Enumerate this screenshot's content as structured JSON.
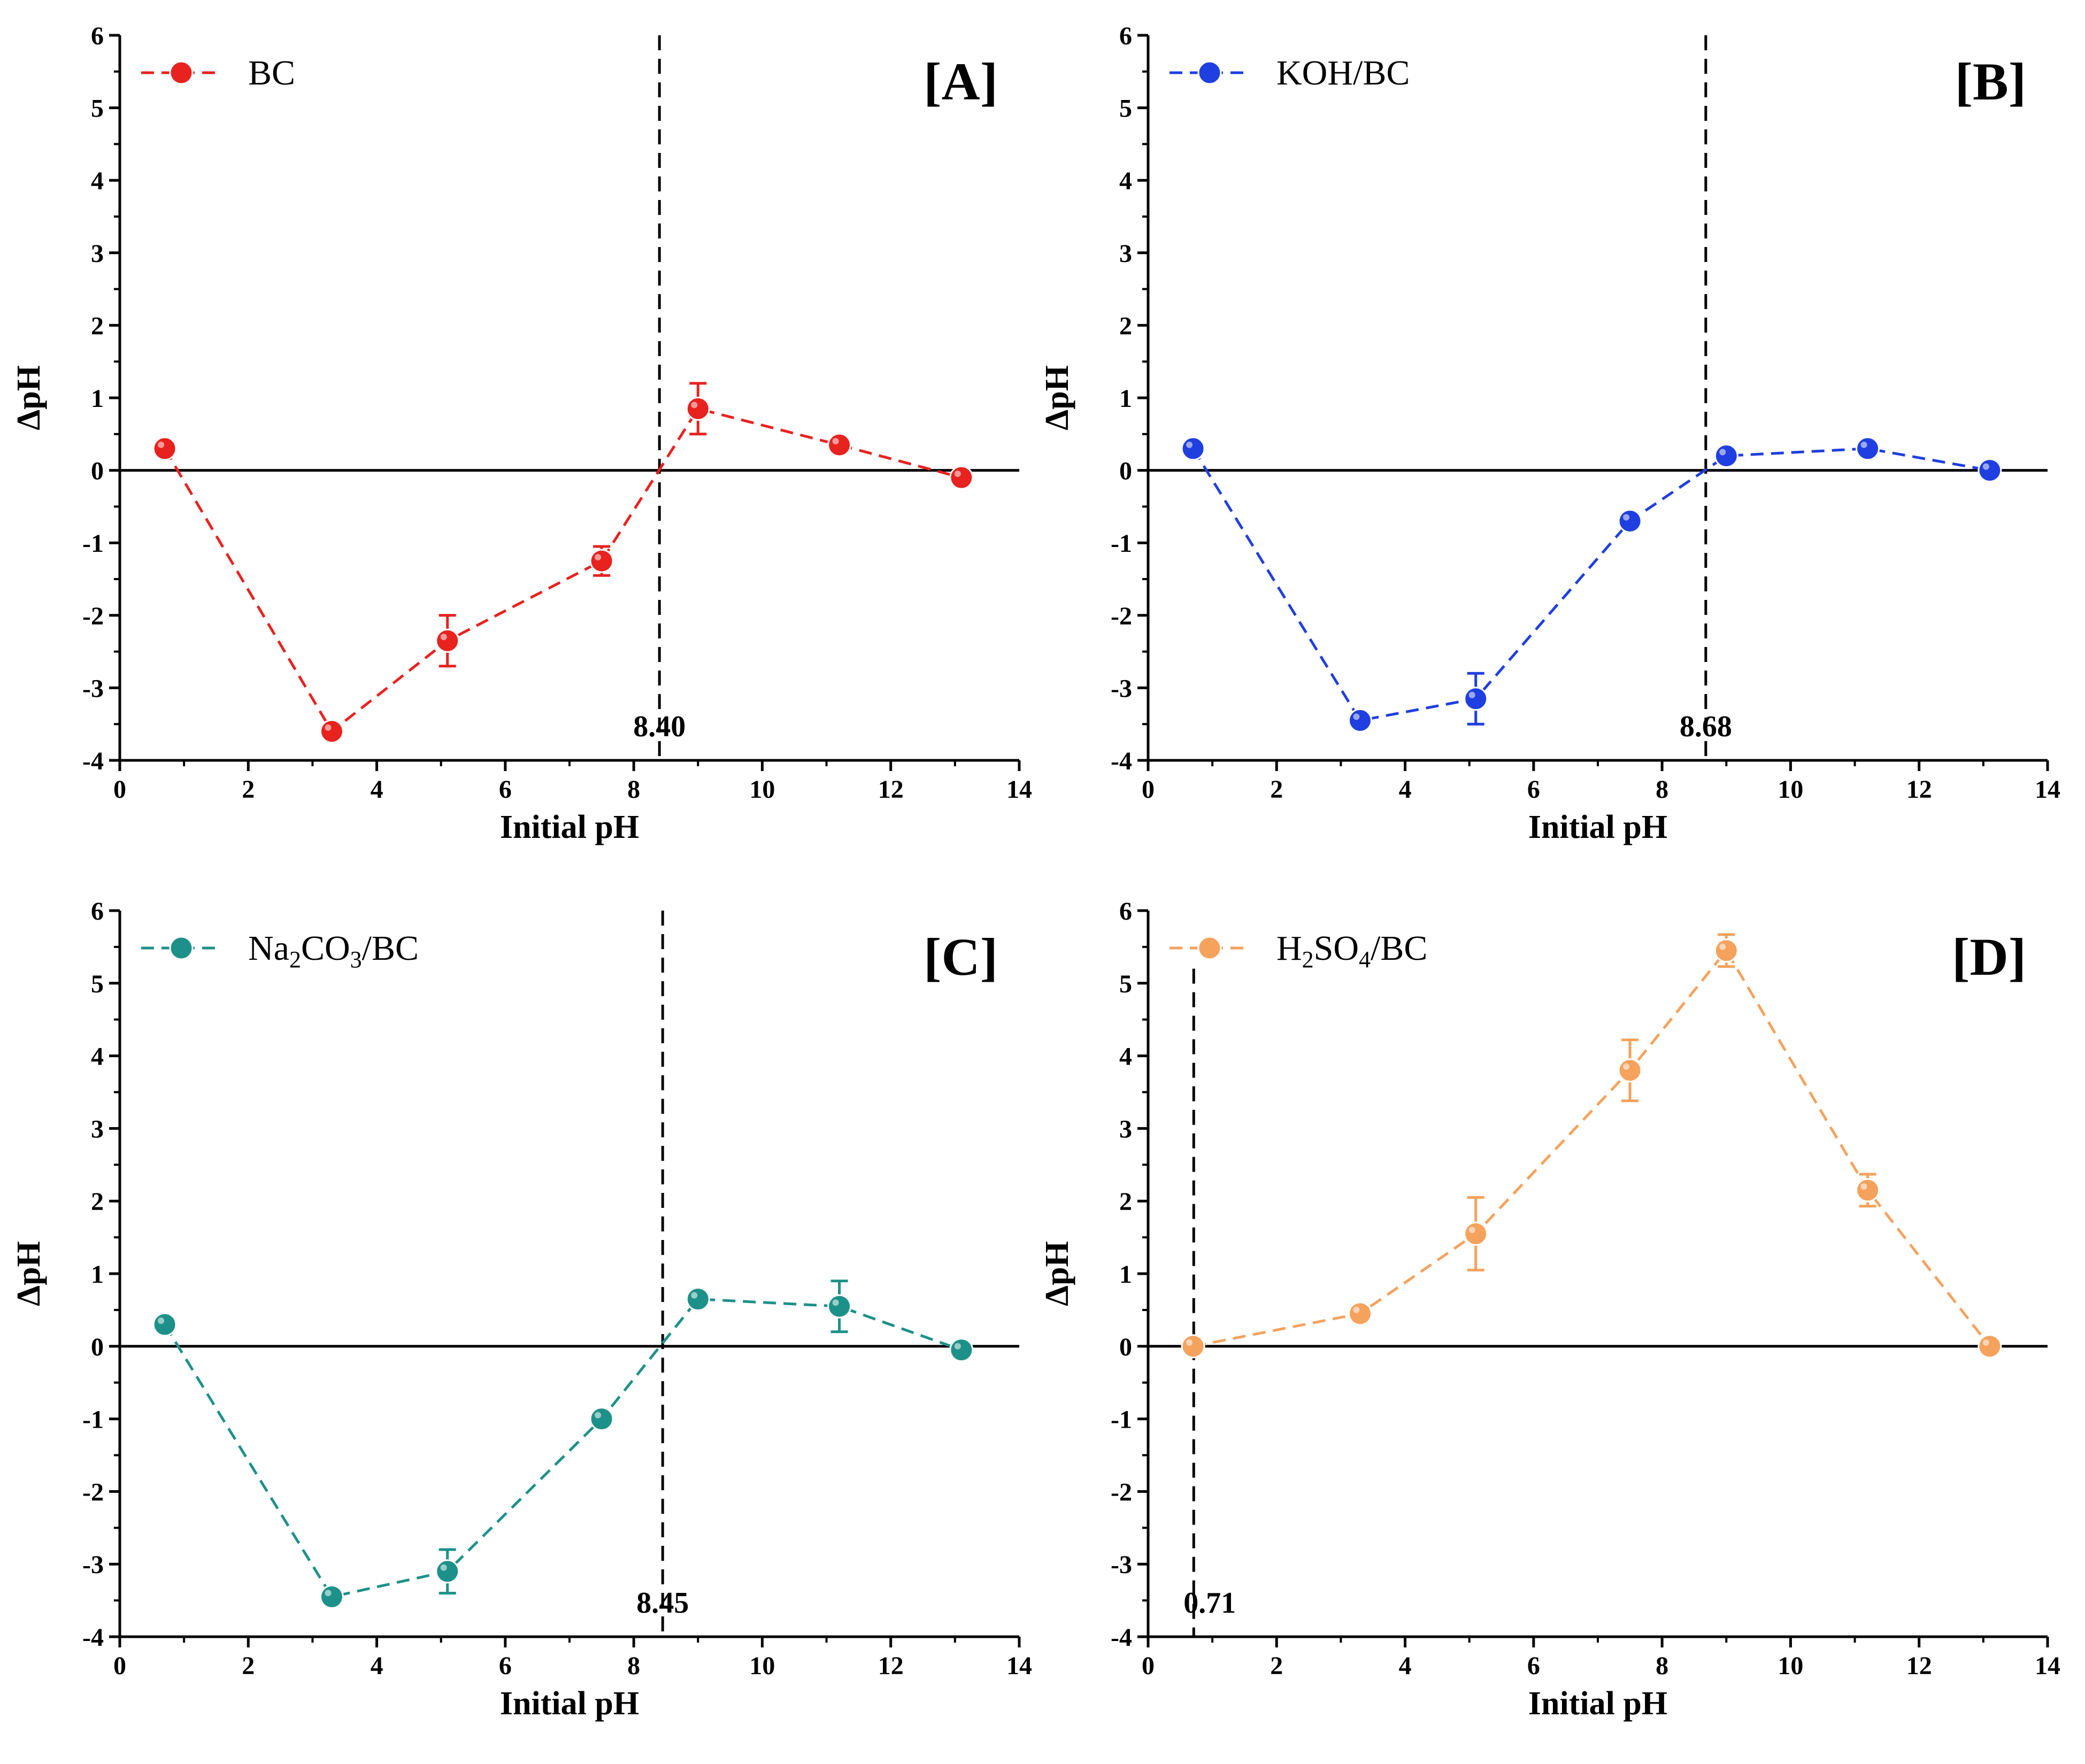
{
  "chart_data": [
    {
      "type": "line",
      "panel_label": "[A]",
      "xlabel": "Initial pH",
      "ylabel": "ΔpH",
      "xlim": [
        0,
        14
      ],
      "ylim": [
        -4,
        6
      ],
      "xticks": [
        "0",
        "2",
        "4",
        "6",
        "8",
        "10",
        "12",
        "14"
      ],
      "yticks": [
        "-4",
        "-3",
        "-2",
        "-1",
        "0",
        "1",
        "2",
        "3",
        "4",
        "5",
        "6"
      ],
      "legend_position": "top-left",
      "series": [
        {
          "name": "BC",
          "color": "#e8221f",
          "x": [
            0.7,
            3.3,
            5.1,
            7.5,
            9.0,
            11.2,
            13.1
          ],
          "y": [
            0.3,
            -3.6,
            -2.35,
            -1.25,
            0.85,
            0.35,
            -0.1
          ],
          "err": [
            0.05,
            0.05,
            0.35,
            0.2,
            0.35,
            0.05,
            0.05
          ]
        }
      ],
      "pzc": {
        "x": 8.4,
        "label": "8.40"
      },
      "zero_line": true
    },
    {
      "type": "line",
      "panel_label": "[B]",
      "xlabel": "Initial pH",
      "ylabel": "ΔpH",
      "xlim": [
        0,
        14
      ],
      "ylim": [
        -4,
        6
      ],
      "xticks": [
        "0",
        "2",
        "4",
        "6",
        "8",
        "10",
        "12",
        "14"
      ],
      "yticks": [
        "-4",
        "-3",
        "-2",
        "-1",
        "0",
        "1",
        "2",
        "3",
        "4",
        "5",
        "6"
      ],
      "legend_position": "top-left",
      "series": [
        {
          "name": "KOH/BC",
          "color": "#1f3fe0",
          "x": [
            0.7,
            3.3,
            5.1,
            7.5,
            9.0,
            11.2,
            13.1
          ],
          "y": [
            0.3,
            -3.45,
            -3.15,
            -0.7,
            0.2,
            0.3,
            0.0
          ],
          "err": [
            0.05,
            0.05,
            0.35,
            0.1,
            0.05,
            0.1,
            0.03
          ]
        }
      ],
      "pzc": {
        "x": 8.68,
        "label": "8.68"
      },
      "zero_line": true
    },
    {
      "type": "line",
      "panel_label": "[C]",
      "xlabel": "Initial pH",
      "ylabel": "ΔpH",
      "xlim": [
        0,
        14
      ],
      "ylim": [
        -4,
        6
      ],
      "xticks": [
        "0",
        "2",
        "4",
        "6",
        "8",
        "10",
        "12",
        "14"
      ],
      "yticks": [
        "-4",
        "-3",
        "-2",
        "-1",
        "0",
        "1",
        "2",
        "3",
        "4",
        "5",
        "6"
      ],
      "legend_position": "top-left",
      "series": [
        {
          "name": "Na2CO3/BC",
          "name_main": "Na",
          "name_sub1": "2",
          "name_mid": "CO",
          "name_sub2": "3",
          "name_tail": "/BC",
          "color": "#1d9189",
          "x": [
            0.7,
            3.3,
            5.1,
            7.5,
            9.0,
            11.2,
            13.1
          ],
          "y": [
            0.3,
            -3.45,
            -3.1,
            -1.0,
            0.65,
            0.55,
            -0.05
          ],
          "err": [
            0.05,
            0.05,
            0.3,
            0.05,
            0.05,
            0.35,
            0.03
          ]
        }
      ],
      "pzc": {
        "x": 8.45,
        "label": "8.45"
      },
      "zero_line": true
    },
    {
      "type": "line",
      "panel_label": "[D]",
      "xlabel": "Initial pH",
      "ylabel": "ΔpH",
      "xlim": [
        0,
        14
      ],
      "ylim": [
        -4,
        6
      ],
      "xticks": [
        "0",
        "2",
        "4",
        "6",
        "8",
        "10",
        "12",
        "14"
      ],
      "yticks": [
        "-4",
        "-3",
        "-2",
        "-1",
        "0",
        "1",
        "2",
        "3",
        "4",
        "5",
        "6"
      ],
      "legend_position": "top-left",
      "series": [
        {
          "name": "H2SO4/BC",
          "name_main": "H",
          "name_sub1": "2",
          "name_mid": "SO",
          "name_sub2": "4",
          "name_tail": "/BC",
          "color": "#f5a25d",
          "x": [
            0.7,
            3.3,
            5.1,
            7.5,
            9.0,
            11.2,
            13.1
          ],
          "y": [
            0.0,
            0.45,
            1.55,
            3.8,
            5.45,
            2.15,
            0.0
          ],
          "err": [
            0.03,
            0.05,
            0.5,
            0.42,
            0.22,
            0.22,
            0.03
          ]
        }
      ],
      "pzc": {
        "x": 0.71,
        "label": "0.71"
      },
      "zero_line": true
    }
  ]
}
